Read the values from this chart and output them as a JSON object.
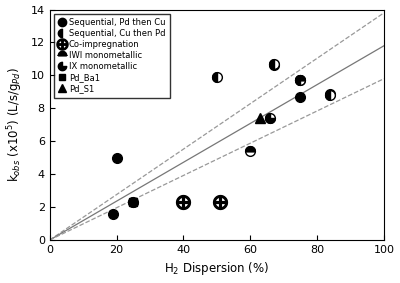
{
  "title": "",
  "xlabel": "H$_2$ Dispersion (%)",
  "ylabel": "k$_{obs}$ (x10$^5$) (L/s/g$_{Pd}$)",
  "xlim": [
    0,
    100
  ],
  "ylim": [
    0,
    14
  ],
  "xticks": [
    0,
    20,
    40,
    60,
    80,
    100
  ],
  "yticks": [
    0,
    2,
    4,
    6,
    8,
    10,
    12,
    14
  ],
  "seq_pd_cu": {
    "label": "Sequential, Pd then Cu",
    "x": [
      19,
      20,
      67,
      75,
      84
    ],
    "y": [
      1.6,
      5.0,
      10.65,
      8.7,
      8.85
    ]
  },
  "seq_cu_pd": {
    "label": "Sequential, Cu then Pd",
    "x": [
      50,
      67,
      75,
      84
    ],
    "y": [
      9.9,
      10.7,
      9.75,
      8.8
    ]
  },
  "co_impreg": {
    "label": "Co-impregnation",
    "x": [
      40,
      51
    ],
    "y": [
      2.3,
      2.3
    ]
  },
  "iwi_mono": {
    "label": "IWI monometallic",
    "x": [
      60,
      75
    ],
    "y": [
      5.4,
      9.75
    ]
  },
  "ix_mono": {
    "label": "IX monometallic",
    "x": [
      25,
      66
    ],
    "y": [
      2.3,
      7.4
    ]
  },
  "pd_ba1": {
    "label": "Pd_Ba1",
    "x": [
      25
    ],
    "y": [
      2.3
    ]
  },
  "pd_s1": {
    "label": "Pd_S1",
    "x": [
      63
    ],
    "y": [
      7.4
    ]
  },
  "fit_lines": [
    {
      "slope": 0.138,
      "intercept": 0,
      "style": "--",
      "color": "#999999",
      "lw": 0.9
    },
    {
      "slope": 0.118,
      "intercept": 0,
      "style": "-",
      "color": "#777777",
      "lw": 0.9
    },
    {
      "slope": 0.098,
      "intercept": 0,
      "style": "--",
      "color": "#999999",
      "lw": 0.9
    }
  ],
  "marker_size": 7,
  "background_color": "#ffffff"
}
